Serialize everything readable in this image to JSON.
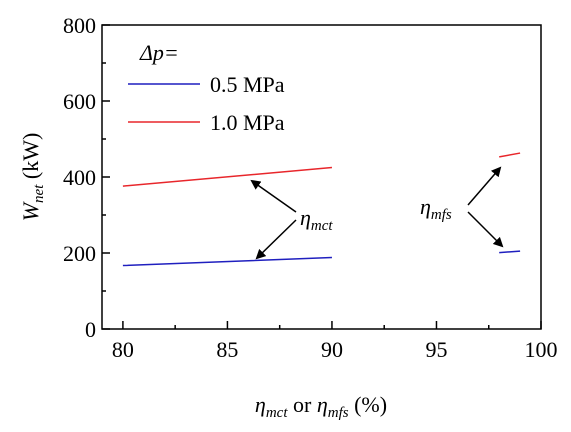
{
  "chart_data": {
    "type": "line",
    "x_label": [
      "η",
      "mct",
      " or ",
      "η",
      "mfs",
      " (%)"
    ],
    "y_label": [
      "W",
      "net",
      " (kW)"
    ],
    "legend_title": "Δp=",
    "x": [
      80,
      90,
      95,
      98,
      99
    ],
    "series": [
      {
        "name": "0.5 MPa",
        "color": "#1f1fbf",
        "values": [
          167,
          188,
          null,
          201,
          205
        ]
      },
      {
        "name": "1.0 MPa",
        "color": "#e8262b",
        "values": [
          376,
          425,
          null,
          453,
          463
        ]
      }
    ],
    "annotations": [
      [
        "η",
        "mct"
      ],
      [
        "η",
        "mfs"
      ]
    ],
    "xlim": [
      79,
      100
    ],
    "xticks": [
      80,
      85,
      90,
      95,
      100
    ],
    "ylim": [
      0,
      800
    ],
    "yticks": [
      0,
      200,
      400,
      600,
      800
    ],
    "grid": false
  }
}
